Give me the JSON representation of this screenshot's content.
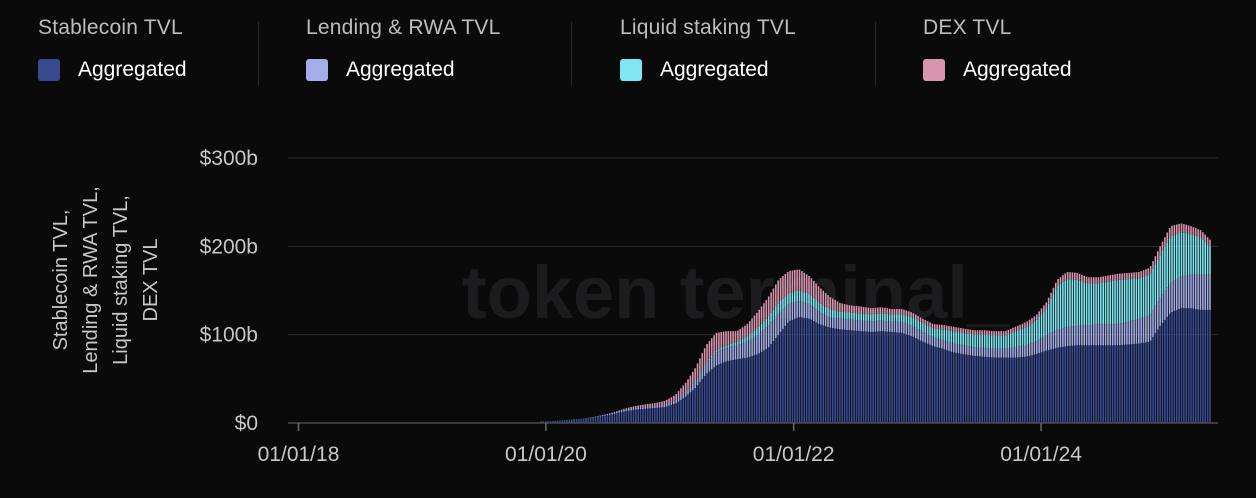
{
  "legend": {
    "groups": [
      {
        "title": "Stablecoin TVL",
        "item": "Aggregated",
        "color": "#3a4a8f"
      },
      {
        "title": "Lending & RWA TVL",
        "item": "Aggregated",
        "color": "#a3aee8"
      },
      {
        "title": "Liquid staking TVL",
        "item": "Aggregated",
        "color": "#7fe7f2"
      },
      {
        "title": "DEX TVL",
        "item": "Aggregated",
        "color": "#d995ae"
      }
    ]
  },
  "y_axis_label_lines": [
    "Stablecoin TVL,",
    "Lending & RWA TVL,",
    "Liquid staking TVL,",
    "DEX TVL"
  ],
  "watermark": "token terminal_",
  "chart_data": {
    "type": "bar",
    "stacked": true,
    "x_date_range": [
      "2019-12-15",
      "2025-05-15"
    ],
    "x_tick_labels": [
      "01/01/18",
      "01/01/20",
      "01/01/22",
      "01/01/24"
    ],
    "x_ticks": [
      "2018-01-01",
      "2020-01-01",
      "2022-01-01",
      "2024-01-01"
    ],
    "y_tick_labels": [
      "$0",
      "$100b",
      "$200b",
      "$300b"
    ],
    "y_ticks": [
      0,
      100,
      200,
      300
    ],
    "ylim": [
      0,
      300
    ],
    "units": "billions USD",
    "grid": true,
    "legend_position": "top",
    "x": [
      "2019-12-15",
      "2020-01-15",
      "2020-02-15",
      "2020-03-15",
      "2020-04-15",
      "2020-05-15",
      "2020-06-15",
      "2020-07-15",
      "2020-08-15",
      "2020-09-15",
      "2020-10-15",
      "2020-11-15",
      "2020-12-15",
      "2021-01-15",
      "2021-02-15",
      "2021-03-15",
      "2021-04-15",
      "2021-05-15",
      "2021-06-15",
      "2021-07-15",
      "2021-08-15",
      "2021-09-15",
      "2021-10-15",
      "2021-11-15",
      "2021-12-15",
      "2022-01-15",
      "2022-02-15",
      "2022-03-15",
      "2022-04-15",
      "2022-05-15",
      "2022-06-15",
      "2022-07-15",
      "2022-08-15",
      "2022-09-15",
      "2022-10-15",
      "2022-11-15",
      "2022-12-15",
      "2023-01-15",
      "2023-02-15",
      "2023-03-15",
      "2023-04-15",
      "2023-05-15",
      "2023-06-15",
      "2023-07-15",
      "2023-08-15",
      "2023-09-15",
      "2023-10-15",
      "2023-11-15",
      "2023-12-15",
      "2024-01-15",
      "2024-02-15",
      "2024-03-15",
      "2024-04-15",
      "2024-05-15",
      "2024-06-15",
      "2024-07-15",
      "2024-08-15",
      "2024-09-15",
      "2024-10-15",
      "2024-11-15",
      "2024-12-15",
      "2025-01-15",
      "2025-02-15",
      "2025-03-15",
      "2025-04-15",
      "2025-05-15"
    ],
    "series": [
      {
        "name": "Stablecoin TVL",
        "color": "#3a4a8f",
        "values": [
          2,
          2,
          3,
          4,
          5,
          6,
          8,
          10,
          13,
          15,
          16,
          17,
          18,
          22,
          30,
          40,
          55,
          65,
          70,
          72,
          74,
          78,
          85,
          100,
          115,
          120,
          118,
          112,
          108,
          106,
          105,
          104,
          103,
          104,
          103,
          102,
          98,
          92,
          87,
          84,
          80,
          78,
          76,
          75,
          74,
          74,
          74,
          75,
          78,
          82,
          85,
          87,
          88,
          88,
          88,
          88,
          88,
          89,
          90,
          92,
          110,
          125,
          130,
          130,
          128,
          128
        ]
      },
      {
        "name": "Lending & RWA TVL",
        "color": "#a3aee8",
        "values": [
          0,
          0,
          0,
          0,
          0,
          0.5,
          1,
          1.5,
          2,
          2,
          2,
          2.5,
          3,
          4,
          6,
          8,
          12,
          15,
          15,
          16,
          18,
          22,
          25,
          24,
          20,
          18,
          17,
          14,
          12,
          12,
          12,
          12,
          12,
          12,
          12,
          12,
          12,
          11,
          10,
          10,
          10,
          10,
          10,
          10,
          10,
          10,
          12,
          13,
          14,
          18,
          20,
          22,
          22,
          22,
          24,
          24,
          24,
          26,
          28,
          30,
          32,
          34,
          36,
          38,
          40,
          40
        ]
      },
      {
        "name": "Liquid staking TVL",
        "color": "#7fe7f2",
        "values": [
          0,
          0,
          0,
          0,
          0,
          0,
          0,
          0,
          0,
          0,
          0,
          0,
          0,
          0,
          0,
          0.5,
          1,
          2,
          3,
          4,
          6,
          8,
          10,
          12,
          12,
          12,
          11,
          10,
          9,
          8,
          8,
          8,
          8,
          8,
          8,
          9,
          10,
          10,
          10,
          12,
          14,
          14,
          14,
          15,
          15,
          15,
          18,
          20,
          24,
          30,
          50,
          54,
          52,
          48,
          46,
          48,
          50,
          48,
          46,
          46,
          48,
          52,
          50,
          46,
          42,
          30
        ]
      },
      {
        "name": "DEX TVL",
        "color": "#d995ae",
        "values": [
          0,
          0,
          0,
          0,
          0,
          0,
          0,
          0.5,
          1,
          2,
          3,
          3,
          4,
          6,
          10,
          14,
          20,
          20,
          16,
          12,
          14,
          18,
          22,
          26,
          25,
          24,
          20,
          18,
          14,
          10,
          8,
          8,
          7,
          7,
          6,
          6,
          5,
          5,
          5,
          5,
          5,
          5,
          5,
          5,
          5,
          5,
          5,
          6,
          6,
          7,
          7,
          8,
          8,
          7,
          7,
          7,
          7,
          7,
          7,
          8,
          10,
          12,
          10,
          9,
          8,
          8
        ]
      }
    ]
  }
}
